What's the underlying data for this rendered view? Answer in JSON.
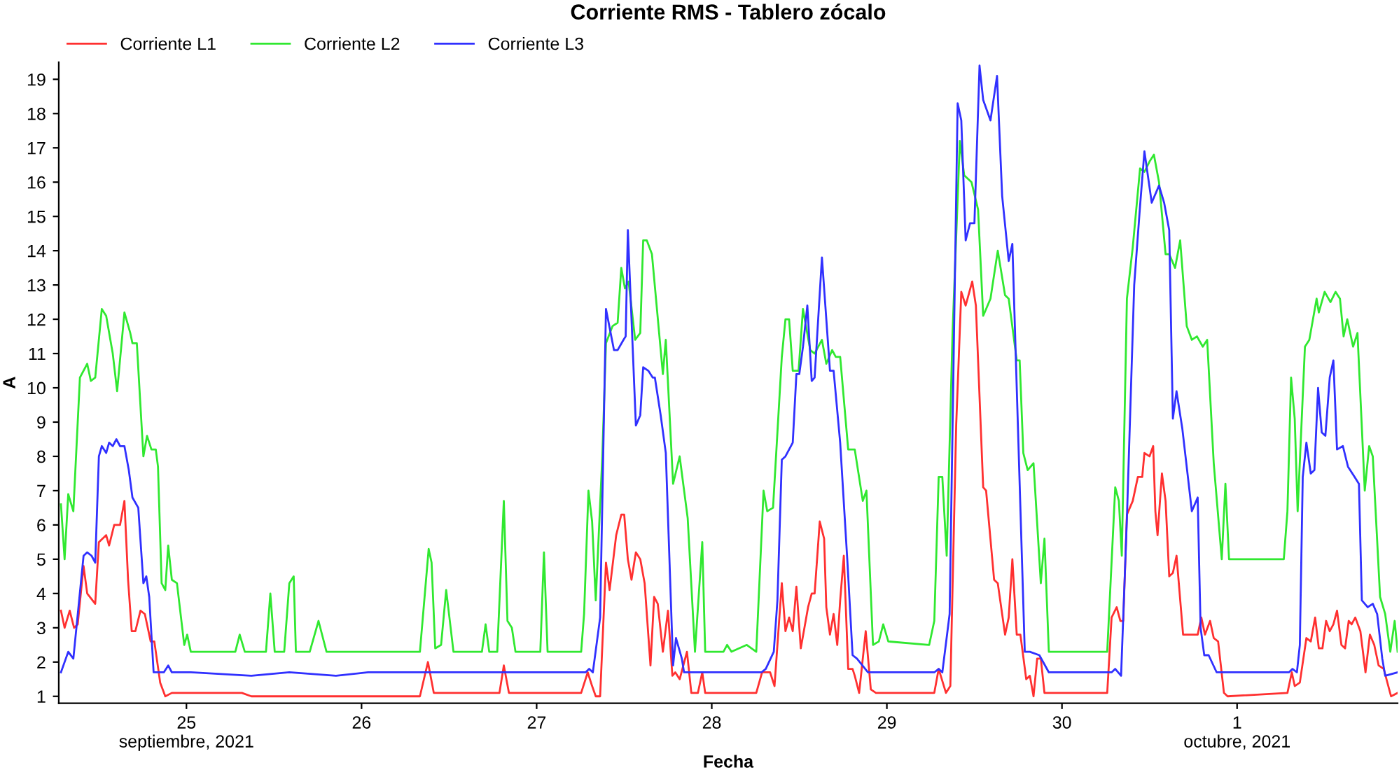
{
  "chart_data": {
    "type": "line",
    "title": "Corriente RMS - Tablero zócalo",
    "xlabel": "Fecha",
    "ylabel": "A",
    "xlim": [
      "2021-09-24T06:30",
      "2021-10-01T22:00"
    ],
    "xticks": [
      {
        "value": "2021-09-25",
        "label": "25\nseptiembre, 2021"
      },
      {
        "value": "2021-09-26",
        "label": "26"
      },
      {
        "value": "2021-09-27",
        "label": "27"
      },
      {
        "value": "2021-09-28",
        "label": "28"
      },
      {
        "value": "2021-09-29",
        "label": "29"
      },
      {
        "value": "2021-09-30",
        "label": "30"
      },
      {
        "value": "2021-10-01",
        "label": "1\noctubre, 2021"
      }
    ],
    "ylim": [
      0.8,
      19.5
    ],
    "yticks": [
      1,
      2,
      3,
      4,
      5,
      6,
      7,
      8,
      9,
      10,
      11,
      12,
      13,
      14,
      15,
      16,
      17,
      18,
      19
    ],
    "grid": false,
    "legend": "top left",
    "marker": "none",
    "line_style": "solid",
    "series": [
      {
        "name": "Corriente L1",
        "color": "#ff3030",
        "x": [
          "2021-09-24T06:48",
          "2021-09-24T07:18",
          "2021-09-24T08:00",
          "2021-09-24T08:36",
          "2021-09-24T09:06",
          "2021-09-24T09:54",
          "2021-09-24T10:24",
          "2021-09-24T11:30",
          "2021-09-24T12:00",
          "2021-09-24T13:00",
          "2021-09-24T13:24",
          "2021-09-24T14:06",
          "2021-09-24T14:54",
          "2021-09-24T15:30",
          "2021-09-24T16:00",
          "2021-09-24T16:30",
          "2021-09-24T17:00",
          "2021-09-24T17:42",
          "2021-09-24T18:18",
          "2021-09-24T19:06",
          "2021-09-24T19:36",
          "2021-09-24T20:24",
          "2021-09-24T21:06",
          "2021-09-24T22:00",
          "2021-09-25T07:36",
          "2021-09-25T08:54",
          "2021-09-25T14:42",
          "2021-09-26T08:00",
          "2021-09-26T09:06",
          "2021-09-26T09:54",
          "2021-09-26T18:54",
          "2021-09-26T19:30",
          "2021-09-26T20:12",
          "2021-09-27T06:06",
          "2021-09-27T07:00",
          "2021-09-27T07:36",
          "2021-09-27T08:06",
          "2021-09-27T08:42",
          "2021-09-27T09:30",
          "2021-09-27T10:00",
          "2021-09-27T10:54",
          "2021-09-27T11:36",
          "2021-09-27T12:00",
          "2021-09-27T12:30",
          "2021-09-27T13:00",
          "2021-09-27T13:36",
          "2021-09-27T14:12",
          "2021-09-27T14:48",
          "2021-09-27T15:36",
          "2021-09-27T16:06",
          "2021-09-27T16:36",
          "2021-09-27T17:18",
          "2021-09-27T18:00",
          "2021-09-27T18:36",
          "2021-09-27T19:00",
          "2021-09-27T19:36",
          "2021-09-27T20:36",
          "2021-09-27T21:12",
          "2021-09-27T22:06",
          "2021-09-27T22:42",
          "2021-09-27T23:06",
          "2021-09-28T06:06",
          "2021-09-28T06:54",
          "2021-09-28T08:00",
          "2021-09-28T08:36",
          "2021-09-28T09:36",
          "2021-09-28T10:06",
          "2021-09-28T10:36",
          "2021-09-28T11:06",
          "2021-09-28T11:36",
          "2021-09-28T12:12",
          "2021-09-28T13:12",
          "2021-09-28T13:42",
          "2021-09-28T14:06",
          "2021-09-28T14:48",
          "2021-09-28T15:24",
          "2021-09-28T15:42",
          "2021-09-28T16:12",
          "2021-09-28T16:42",
          "2021-09-28T17:12",
          "2021-09-28T17:36",
          "2021-09-28T18:06",
          "2021-09-28T18:42",
          "2021-09-28T19:18",
          "2021-09-28T19:36",
          "2021-09-28T20:12",
          "2021-09-28T21:06",
          "2021-09-28T21:48",
          "2021-09-28T22:30",
          "2021-09-29T06:30",
          "2021-09-29T07:06",
          "2021-09-29T08:06",
          "2021-09-29T08:42",
          "2021-09-29T09:30",
          "2021-09-29T10:12",
          "2021-09-29T10:48",
          "2021-09-29T11:42",
          "2021-09-29T12:12",
          "2021-09-29T13:12",
          "2021-09-29T13:36",
          "2021-09-29T14:42",
          "2021-09-29T15:12",
          "2021-09-29T16:12",
          "2021-09-29T16:42",
          "2021-09-29T17:12",
          "2021-09-29T17:48",
          "2021-09-29T18:18",
          "2021-09-29T19:06",
          "2021-09-29T19:36",
          "2021-09-29T20:06",
          "2021-09-29T20:36",
          "2021-09-29T21:06",
          "2021-09-29T21:36",
          "2021-09-30T06:12",
          "2021-09-30T06:48",
          "2021-09-30T07:30",
          "2021-09-30T08:00",
          "2021-09-30T08:24",
          "2021-09-30T08:54",
          "2021-09-30T09:42",
          "2021-09-30T10:24",
          "2021-09-30T11:00",
          "2021-09-30T11:18",
          "2021-09-30T12:00",
          "2021-09-30T12:30",
          "2021-09-30T12:48",
          "2021-09-30T13:06",
          "2021-09-30T13:42",
          "2021-09-30T14:12",
          "2021-09-30T14:42",
          "2021-09-30T15:12",
          "2021-09-30T15:42",
          "2021-09-30T16:36",
          "2021-09-30T17:06",
          "2021-09-30T18:36",
          "2021-09-30T19:06",
          "2021-09-30T19:36",
          "2021-09-30T20:18",
          "2021-09-30T20:48",
          "2021-09-30T21:24",
          "2021-09-30T22:12",
          "2021-09-30T22:42",
          "2021-10-01T06:54",
          "2021-10-01T07:30",
          "2021-10-01T07:54",
          "2021-10-01T08:36",
          "2021-10-01T09:30",
          "2021-10-01T10:06",
          "2021-10-01T10:42",
          "2021-10-01T11:12",
          "2021-10-01T11:42",
          "2021-10-01T12:12",
          "2021-10-01T12:42",
          "2021-10-01T13:12",
          "2021-10-01T13:42",
          "2021-10-01T14:18",
          "2021-10-01T14:48",
          "2021-10-01T15:18",
          "2021-10-01T15:42",
          "2021-10-01T16:12",
          "2021-10-01T16:54",
          "2021-10-01T17:36",
          "2021-10-01T18:12",
          "2021-10-01T18:48",
          "2021-10-01T19:24",
          "2021-10-01T20:06",
          "2021-10-01T21:06",
          "2021-10-01T22:00"
        ],
        "values": [
          3.5,
          3.0,
          3.5,
          3.0,
          3.1,
          4.8,
          4.0,
          3.7,
          5.5,
          5.7,
          5.4,
          6.0,
          6.0,
          6.7,
          4.4,
          2.9,
          2.9,
          3.5,
          3.4,
          2.6,
          2.6,
          1.4,
          1.0,
          1.1,
          1.1,
          1.0,
          1.0,
          1.0,
          2.0,
          1.1,
          1.1,
          1.9,
          1.1,
          1.1,
          1.7,
          1.3,
          1.0,
          1.0,
          4.9,
          4.1,
          5.7,
          6.3,
          6.3,
          5.0,
          4.4,
          5.2,
          5.0,
          4.3,
          1.9,
          3.9,
          3.7,
          2.3,
          3.5,
          1.6,
          1.7,
          1.5,
          2.3,
          1.1,
          1.1,
          1.7,
          1.1,
          1.1,
          1.7,
          1.7,
          1.3,
          4.3,
          2.9,
          3.3,
          2.9,
          4.2,
          2.4,
          3.6,
          4.0,
          4.0,
          6.1,
          5.6,
          3.6,
          2.8,
          3.4,
          2.5,
          3.8,
          5.1,
          1.8,
          1.8,
          1.6,
          1.1,
          2.9,
          1.2,
          1.1,
          1.1,
          1.8,
          1.1,
          1.3,
          8.9,
          12.8,
          12.4,
          13.1,
          12.4,
          7.1,
          7.0,
          4.4,
          4.3,
          2.8,
          3.3,
          5.0,
          2.8,
          2.8,
          1.5,
          1.6,
          1.0,
          2.1,
          2.1,
          1.1,
          1.1,
          3.3,
          3.6,
          3.2,
          3.2,
          6.3,
          6.7,
          7.4,
          7.4,
          8.1,
          8.0,
          8.3,
          6.4,
          5.7,
          7.5,
          6.7,
          4.5,
          4.6,
          5.1,
          2.8,
          2.8,
          2.8,
          3.3,
          2.8,
          3.2,
          2.7,
          2.6,
          1.1,
          1.0,
          1.1,
          1.7,
          1.3,
          1.4,
          2.7,
          2.6,
          3.3,
          2.4,
          2.4,
          3.2,
          2.9,
          3.1,
          3.5,
          2.5,
          2.4,
          3.2,
          3.1,
          3.3,
          2.9,
          1.7,
          2.8,
          2.5,
          1.9,
          1.8,
          1.0,
          1.1
        ]
      },
      {
        "name": "Corriente L2",
        "color": "#30e830",
        "x": [
          "2021-09-24T06:48",
          "2021-09-24T07:18",
          "2021-09-24T07:48",
          "2021-09-24T08:30",
          "2021-09-24T09:24",
          "2021-09-24T10:24",
          "2021-09-24T10:54",
          "2021-09-24T11:30",
          "2021-09-24T12:24",
          "2021-09-24T13:00",
          "2021-09-24T13:54",
          "2021-09-24T14:30",
          "2021-09-24T15:30",
          "2021-09-24T16:18",
          "2021-09-24T16:36",
          "2021-09-24T17:12",
          "2021-09-24T18:06",
          "2021-09-24T18:36",
          "2021-09-24T19:12",
          "2021-09-24T19:48",
          "2021-09-24T20:06",
          "2021-09-24T20:36",
          "2021-09-24T21:06",
          "2021-09-24T21:30",
          "2021-09-24T22:00",
          "2021-09-24T22:42",
          "2021-09-24T23:42",
          "2021-09-25T00:06",
          "2021-09-25T00:36",
          "2021-09-25T06:42",
          "2021-09-25T07:18",
          "2021-09-25T08:00",
          "2021-09-25T10:54",
          "2021-09-25T11:30",
          "2021-09-25T12:06",
          "2021-09-25T13:24",
          "2021-09-25T14:06",
          "2021-09-25T14:42",
          "2021-09-25T15:00",
          "2021-09-25T16:54",
          "2021-09-25T18:06",
          "2021-09-25T19:12",
          "2021-09-26T08:00",
          "2021-09-26T09:12",
          "2021-09-26T09:36",
          "2021-09-26T10:06",
          "2021-09-26T10:54",
          "2021-09-26T11:36",
          "2021-09-26T12:36",
          "2021-09-26T16:30",
          "2021-09-26T17:00",
          "2021-09-26T17:30",
          "2021-09-26T18:36",
          "2021-09-26T19:30",
          "2021-09-26T20:00",
          "2021-09-26T20:36",
          "2021-09-26T21:06",
          "2021-09-27T00:30",
          "2021-09-27T01:00",
          "2021-09-27T01:30",
          "2021-09-27T06:06",
          "2021-09-27T06:30",
          "2021-09-27T07:06",
          "2021-09-27T07:36",
          "2021-09-27T08:06",
          "2021-09-27T09:00",
          "2021-09-27T09:30",
          "2021-09-27T10:24",
          "2021-09-27T11:06",
          "2021-09-27T11:36",
          "2021-09-27T12:06",
          "2021-09-27T12:36",
          "2021-09-27T13:30",
          "2021-09-27T14:12",
          "2021-09-27T14:36",
          "2021-09-27T15:06",
          "2021-09-27T15:48",
          "2021-09-27T17:18",
          "2021-09-27T17:42",
          "2021-09-27T18:42",
          "2021-09-27T19:36",
          "2021-09-27T20:42",
          "2021-09-27T21:42",
          "2021-09-27T22:42",
          "2021-09-27T23:06",
          "2021-09-28T01:36",
          "2021-09-28T02:06",
          "2021-09-28T02:42",
          "2021-09-28T04:48",
          "2021-09-28T06:06",
          "2021-09-28T07:06",
          "2021-09-28T07:36",
          "2021-09-28T08:24",
          "2021-09-28T09:36",
          "2021-09-28T10:06",
          "2021-09-28T10:36",
          "2021-09-28T11:06",
          "2021-09-28T11:54",
          "2021-09-28T12:30",
          "2021-09-28T13:30",
          "2021-09-28T14:06",
          "2021-09-28T15:06",
          "2021-09-28T15:42",
          "2021-09-28T16:30",
          "2021-09-28T17:00",
          "2021-09-28T17:36",
          "2021-09-28T18:42",
          "2021-09-28T19:36",
          "2021-09-28T20:42",
          "2021-09-28T21:12",
          "2021-09-28T22:06",
          "2021-09-28T22:54",
          "2021-09-28T23:30",
          "2021-09-29T00:12",
          "2021-09-29T05:48",
          "2021-09-29T06:30",
          "2021-09-29T07:06",
          "2021-09-29T07:36",
          "2021-09-29T08:12",
          "2021-09-29T09:00",
          "2021-09-29T10:00",
          "2021-09-29T10:36",
          "2021-09-29T11:36",
          "2021-09-29T12:30",
          "2021-09-29T13:12",
          "2021-09-29T14:12",
          "2021-09-29T15:12",
          "2021-09-29T16:12",
          "2021-09-29T16:42",
          "2021-09-29T17:48",
          "2021-09-29T18:12",
          "2021-09-29T18:42",
          "2021-09-29T19:18",
          "2021-09-29T20:06",
          "2021-09-29T21:06",
          "2021-09-29T21:36",
          "2021-09-29T22:12",
          "2021-09-30T02:00",
          "2021-09-30T06:12",
          "2021-09-30T07:18",
          "2021-09-30T07:48",
          "2021-09-30T08:12",
          "2021-09-30T08:54",
          "2021-09-30T09:42",
          "2021-09-30T10:42",
          "2021-09-30T11:18",
          "2021-09-30T12:00",
          "2021-09-30T12:36",
          "2021-09-30T13:18",
          "2021-09-30T14:12",
          "2021-09-30T14:42",
          "2021-09-30T15:30",
          "2021-09-30T16:12",
          "2021-09-30T17:06",
          "2021-09-30T17:48",
          "2021-09-30T18:30",
          "2021-09-30T19:18",
          "2021-09-30T19:54",
          "2021-09-30T20:48",
          "2021-09-30T21:54",
          "2021-09-30T22:24",
          "2021-09-30T22:54",
          "2021-10-01T06:24",
          "2021-10-01T06:54",
          "2021-10-01T07:24",
          "2021-10-01T07:54",
          "2021-10-01T08:18",
          "2021-10-01T09:18",
          "2021-10-01T09:54",
          "2021-10-01T10:54",
          "2021-10-01T11:12",
          "2021-10-01T12:00",
          "2021-10-01T12:48",
          "2021-10-01T13:30",
          "2021-10-01T14:06",
          "2021-10-01T14:36",
          "2021-10-01T15:06",
          "2021-10-01T15:54",
          "2021-10-01T16:30",
          "2021-10-01T17:30",
          "2021-10-01T18:06",
          "2021-10-01T18:36",
          "2021-10-01T19:36",
          "2021-10-01T20:18",
          "2021-10-01T21:00",
          "2021-10-01T21:36",
          "2021-10-01T22:00"
        ],
        "values": [
          6.6,
          5.0,
          6.9,
          6.4,
          10.3,
          10.7,
          10.2,
          10.3,
          12.3,
          12.1,
          11.0,
          9.9,
          12.2,
          11.6,
          11.3,
          11.3,
          8.0,
          8.6,
          8.2,
          8.2,
          7.7,
          4.3,
          4.1,
          5.4,
          4.4,
          4.3,
          2.5,
          2.8,
          2.3,
          2.3,
          2.8,
          2.3,
          2.3,
          4.0,
          2.3,
          2.3,
          4.3,
          4.5,
          2.3,
          2.3,
          3.2,
          2.3,
          2.3,
          5.3,
          4.9,
          2.4,
          2.5,
          4.1,
          2.3,
          2.3,
          3.1,
          2.3,
          2.3,
          6.7,
          3.2,
          3.0,
          2.3,
          2.3,
          5.2,
          2.3,
          2.3,
          3.4,
          7.0,
          6.1,
          3.8,
          8.0,
          11.3,
          11.8,
          11.9,
          13.5,
          12.9,
          13.1,
          11.4,
          11.6,
          14.3,
          14.3,
          13.9,
          10.4,
          11.4,
          7.2,
          8.0,
          6.2,
          2.3,
          5.5,
          2.3,
          2.3,
          2.5,
          2.3,
          2.5,
          2.3,
          7.0,
          6.4,
          6.5,
          10.9,
          12.0,
          12.0,
          10.5,
          10.5,
          12.3,
          11.1,
          11.0,
          11.4,
          10.7,
          11.1,
          10.9,
          10.9,
          8.2,
          8.2,
          6.7,
          7.0,
          2.5,
          2.6,
          3.1,
          2.6,
          2.5,
          3.2,
          7.4,
          7.4,
          5.1,
          11.6,
          17.2,
          16.2,
          16.0,
          15.2,
          12.1,
          12.6,
          14.0,
          12.7,
          12.6,
          10.8,
          10.8,
          8.1,
          7.6,
          7.8,
          4.3,
          5.6,
          2.3,
          2.3,
          2.3,
          7.1,
          6.7,
          5.1,
          12.6,
          14.1,
          16.4,
          16.3,
          16.6,
          16.8,
          16.0,
          13.9,
          13.9,
          13.5,
          14.3,
          11.8,
          11.4,
          11.5,
          11.2,
          11.4,
          7.8,
          5.0,
          7.2,
          5.0,
          5.0,
          6.4,
          10.3,
          9.1,
          6.4,
          11.2,
          11.4,
          12.6,
          12.2,
          12.8,
          12.5,
          12.8,
          12.6,
          11.5,
          12.0,
          11.2,
          11.6,
          7.0,
          8.3,
          8.0,
          3.9,
          3.4,
          2.3,
          3.2,
          2.3
        ]
      },
      {
        "name": "Corriente L3",
        "color": "#3030ff",
        "x": [
          "2021-09-24T06:48",
          "2021-09-24T07:48",
          "2021-09-24T08:30",
          "2021-09-24T09:54",
          "2021-09-24T10:24",
          "2021-09-24T11:00",
          "2021-09-24T11:30",
          "2021-09-24T12:00",
          "2021-09-24T12:24",
          "2021-09-24T13:00",
          "2021-09-24T13:24",
          "2021-09-24T13:54",
          "2021-09-24T14:24",
          "2021-09-24T14:54",
          "2021-09-24T15:30",
          "2021-09-24T16:06",
          "2021-09-24T16:36",
          "2021-09-24T17:24",
          "2021-09-24T18:06",
          "2021-09-24T18:30",
          "2021-09-24T18:54",
          "2021-09-24T19:30",
          "2021-09-24T20:54",
          "2021-09-24T21:30",
          "2021-09-24T22:00",
          "2021-09-25T00:36",
          "2021-09-25T08:54",
          "2021-09-25T14:06",
          "2021-09-25T20:30",
          "2021-09-26T00:54",
          "2021-09-26T11:30",
          "2021-09-26T19:30",
          "2021-09-27T06:42",
          "2021-09-27T07:12",
          "2021-09-27T07:42",
          "2021-09-27T08:42",
          "2021-09-27T09:30",
          "2021-09-27T10:36",
          "2021-09-27T11:06",
          "2021-09-27T11:54",
          "2021-09-27T12:12",
          "2021-09-27T12:30",
          "2021-09-27T13:36",
          "2021-09-27T14:12",
          "2021-09-27T14:36",
          "2021-09-27T15:18",
          "2021-09-27T15:54",
          "2021-09-27T16:12",
          "2021-09-27T17:00",
          "2021-09-27T17:42",
          "2021-09-27T18:42",
          "2021-09-27T19:06",
          "2021-09-27T19:54",
          "2021-09-27T20:12",
          "2021-09-28T04:12",
          "2021-09-28T06:48",
          "2021-09-28T07:24",
          "2021-09-28T08:30",
          "2021-09-28T09:00",
          "2021-09-28T09:36",
          "2021-09-28T10:06",
          "2021-09-28T11:06",
          "2021-09-28T11:36",
          "2021-09-28T12:00",
          "2021-09-28T12:30",
          "2021-09-28T13:06",
          "2021-09-28T13:42",
          "2021-09-28T14:06",
          "2021-09-28T15:06",
          "2021-09-28T16:12",
          "2021-09-28T16:42",
          "2021-09-28T17:36",
          "2021-09-28T18:36",
          "2021-09-28T19:18",
          "2021-09-28T19:54",
          "2021-09-28T21:24",
          "2021-09-29T06:30",
          "2021-09-29T07:06",
          "2021-09-29T07:36",
          "2021-09-29T08:36",
          "2021-09-29T09:42",
          "2021-09-29T10:12",
          "2021-09-29T10:48",
          "2021-09-29T11:24",
          "2021-09-29T12:00",
          "2021-09-29T12:42",
          "2021-09-29T13:12",
          "2021-09-29T14:12",
          "2021-09-29T15:06",
          "2021-09-29T15:48",
          "2021-09-29T16:42",
          "2021-09-29T17:12",
          "2021-09-29T18:54",
          "2021-09-29T19:36",
          "2021-09-29T20:54",
          "2021-09-29T22:12",
          "2021-09-30T06:48",
          "2021-09-30T07:18",
          "2021-09-30T08:06",
          "2021-09-30T08:54",
          "2021-09-30T09:54",
          "2021-09-30T10:42",
          "2021-09-30T11:18",
          "2021-09-30T12:18",
          "2021-09-30T13:18",
          "2021-09-30T14:00",
          "2021-09-30T14:42",
          "2021-09-30T15:12",
          "2021-09-30T15:42",
          "2021-09-30T16:30",
          "2021-09-30T17:48",
          "2021-09-30T18:36",
          "2021-09-30T19:00",
          "2021-09-30T19:30",
          "2021-09-30T20:06",
          "2021-09-30T21:12",
          "2021-10-01T02:30",
          "2021-10-01T07:06",
          "2021-10-01T07:36",
          "2021-10-01T08:12",
          "2021-10-01T08:36",
          "2021-10-01T09:00",
          "2021-10-01T09:30",
          "2021-10-01T10:06",
          "2021-10-01T10:36",
          "2021-10-01T11:06",
          "2021-10-01T11:36",
          "2021-10-01T12:06",
          "2021-10-01T12:42",
          "2021-10-01T13:12",
          "2021-10-01T13:42",
          "2021-10-01T14:30",
          "2021-10-01T15:12",
          "2021-10-01T16:06",
          "2021-10-01T16:42",
          "2021-10-01T17:06",
          "2021-10-01T17:54",
          "2021-10-01T18:36",
          "2021-10-01T19:12",
          "2021-10-01T19:54",
          "2021-10-01T20:18",
          "2021-10-01T22:00"
        ],
        "values": [
          1.7,
          2.3,
          2.1,
          5.1,
          5.2,
          5.1,
          4.9,
          8.0,
          8.3,
          8.1,
          8.4,
          8.3,
          8.5,
          8.3,
          8.3,
          7.6,
          6.8,
          6.5,
          4.3,
          4.5,
          3.9,
          1.7,
          1.7,
          1.9,
          1.7,
          1.7,
          1.6,
          1.7,
          1.6,
          1.7,
          1.7,
          1.7,
          1.7,
          1.8,
          1.7,
          3.3,
          12.3,
          11.1,
          11.1,
          11.4,
          11.5,
          14.6,
          8.9,
          9.2,
          10.6,
          10.5,
          10.3,
          10.3,
          9.2,
          8.1,
          1.9,
          2.7,
          2.1,
          1.7,
          1.7,
          1.7,
          1.8,
          2.3,
          3.8,
          7.9,
          8.0,
          8.4,
          10.4,
          10.4,
          11.2,
          12.4,
          10.2,
          10.3,
          13.8,
          10.5,
          10.5,
          8.4,
          4.9,
          2.2,
          2.1,
          1.7,
          1.7,
          1.8,
          1.7,
          3.4,
          18.3,
          17.8,
          14.3,
          14.8,
          14.8,
          19.4,
          18.4,
          17.8,
          19.1,
          15.6,
          13.7,
          14.2,
          2.3,
          2.3,
          2.2,
          1.7,
          1.7,
          1.8,
          1.6,
          6.2,
          13.0,
          15.3,
          16.9,
          15.4,
          15.9,
          15.4,
          14.6,
          9.1,
          9.9,
          8.8,
          6.4,
          6.8,
          3.0,
          2.2,
          2.2,
          1.7,
          1.7,
          1.7,
          1.8,
          1.7,
          2.5,
          7.4,
          8.4,
          7.5,
          7.6,
          10.0,
          8.7,
          8.6,
          10.3,
          10.8,
          8.2,
          8.3,
          7.7,
          7.4,
          7.2,
          3.8,
          3.6,
          3.7,
          3.4,
          2.1,
          1.6,
          1.7
        ]
      }
    ]
  }
}
